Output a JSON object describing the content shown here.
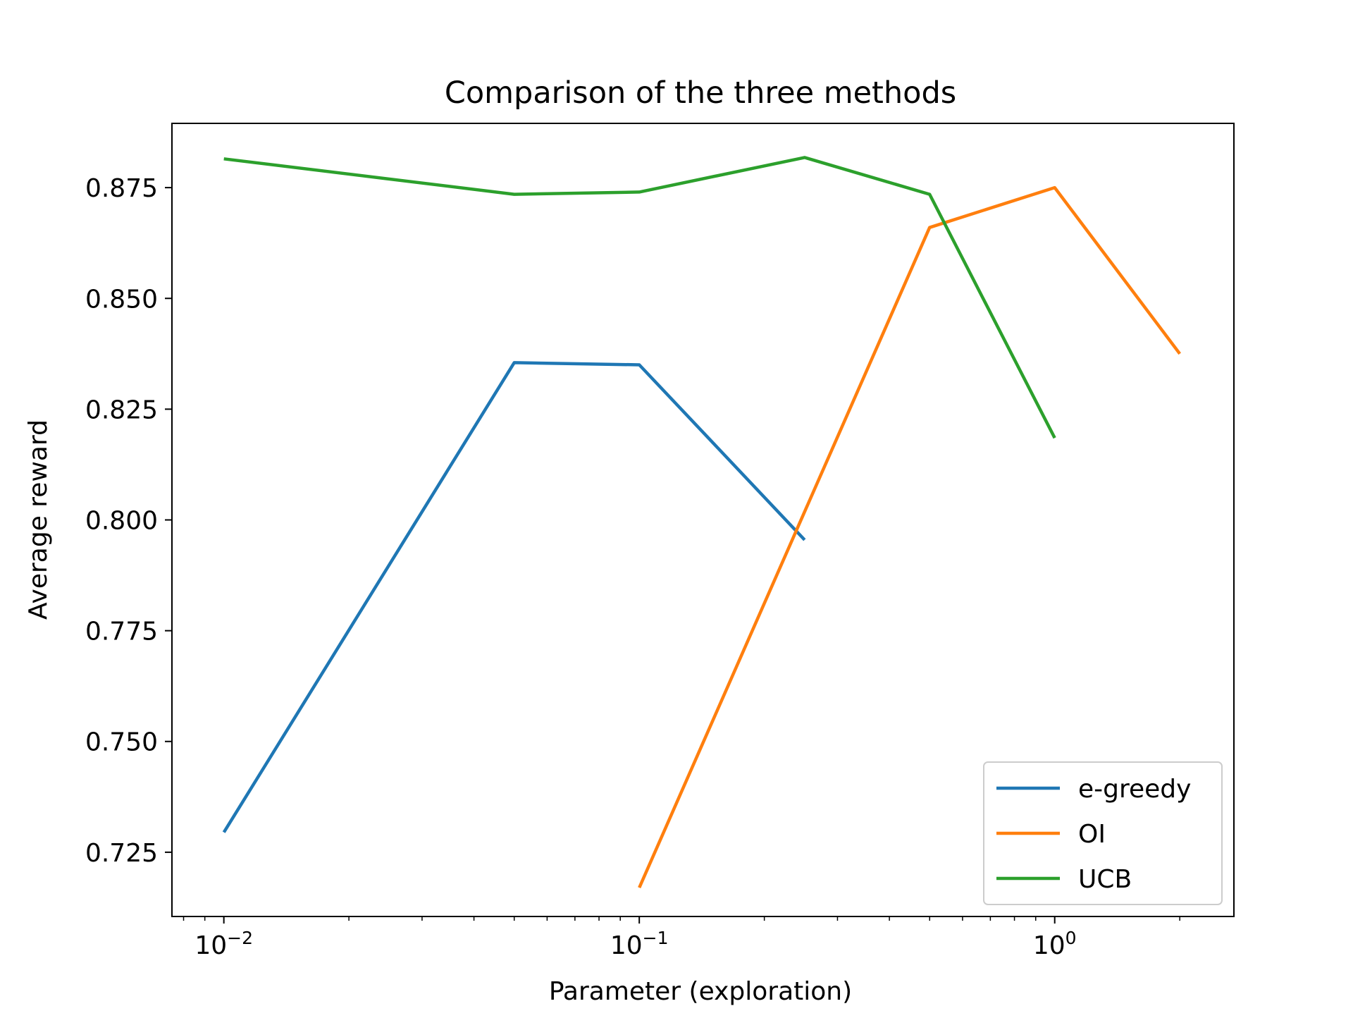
{
  "chart_data": {
    "type": "line",
    "title": "Comparison of the three methods",
    "xlabel": "Parameter (exploration)",
    "ylabel": "Average reward",
    "xscale": "log",
    "xlim": [
      0.0075,
      2.7
    ],
    "ylim": [
      0.7105,
      0.8895
    ],
    "yticks": [
      0.725,
      0.75,
      0.775,
      0.8,
      0.825,
      0.85,
      0.875
    ],
    "ytick_labels": [
      "0.725",
      "0.750",
      "0.775",
      "0.800",
      "0.825",
      "0.850",
      "0.875"
    ],
    "xticks_major": [
      {
        "value": 0.01,
        "base": "10",
        "exp": "−2"
      },
      {
        "value": 0.1,
        "base": "10",
        "exp": "−1"
      },
      {
        "value": 1,
        "base": "10",
        "exp": "0"
      }
    ],
    "grid": false,
    "legend_position": "lower-right",
    "series": [
      {
        "name": "e-greedy",
        "color": "#1f77b4",
        "x": [
          0.01,
          0.05,
          0.1,
          0.25
        ],
        "y": [
          0.7295,
          0.8355,
          0.835,
          0.7955
        ]
      },
      {
        "name": "OI",
        "color": "#ff7f0e",
        "x": [
          0.1,
          0.5,
          1,
          2
        ],
        "y": [
          0.717,
          0.866,
          0.875,
          0.8375
        ]
      },
      {
        "name": "UCB",
        "color": "#2ca02c",
        "x": [
          0.01,
          0.05,
          0.1,
          0.25,
          0.5,
          1
        ],
        "y": [
          0.8815,
          0.8735,
          0.874,
          0.8818,
          0.8735,
          0.8185
        ]
      }
    ]
  }
}
